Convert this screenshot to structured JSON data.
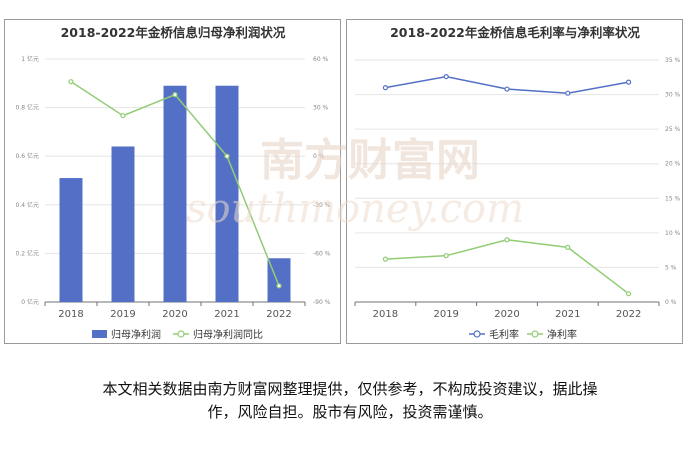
{
  "chart_data": [
    {
      "type": "bar+line",
      "title": "2018-2022年金桥信息归母净利润状况",
      "categories": [
        "2018",
        "2019",
        "2020",
        "2021",
        "2022"
      ],
      "series": [
        {
          "name": "归母净利润",
          "type": "bar",
          "axis": "left",
          "values": [
            0.51,
            0.64,
            0.89,
            0.89,
            0.18
          ]
        },
        {
          "name": "归母净利润同比",
          "type": "line",
          "axis": "right",
          "values": [
            46,
            25,
            38,
            0,
            -80
          ]
        }
      ],
      "left_axis": {
        "ticks": [
          "1 亿元",
          "0.8 亿元",
          "0.6 亿元",
          "0.4 亿元",
          "0.2 亿元",
          "0 亿元"
        ],
        "ylim": [
          0,
          1
        ]
      },
      "right_axis": {
        "ticks": [
          "60 %",
          "30 %",
          "0 %",
          "-30 %",
          "-60 %",
          "-90 %"
        ],
        "ylim": [
          -90,
          60
        ]
      },
      "legend_position": "bottom",
      "colors": {
        "bar": "#5470c6",
        "line": "#91cc75"
      }
    },
    {
      "type": "line",
      "title": "2018-2022年金桥信息毛利率与净利率状况",
      "categories": [
        "2018",
        "2019",
        "2020",
        "2021",
        "2022"
      ],
      "series": [
        {
          "name": "毛利率",
          "values": [
            31.0,
            32.6,
            30.8,
            30.2,
            31.8
          ],
          "color": "#5470c6"
        },
        {
          "name": "净利率",
          "values": [
            6.2,
            6.7,
            9.0,
            7.9,
            1.2
          ],
          "color": "#91cc75"
        }
      ],
      "right_axis": {
        "ticks": [
          "35 %",
          "30 %",
          "25 %",
          "20 %",
          "15 %",
          "10 %",
          "5 %",
          "0 %"
        ],
        "ylim": [
          0,
          35
        ]
      },
      "legend_position": "bottom"
    }
  ],
  "watermark": {
    "cn": "南方财富网",
    "en": "southmoney.com"
  },
  "footer": {
    "line1": "本文相关数据由南方财富网整理提供，仅供参考，不构成投资建议，据此操",
    "line2": "作，风险自担。股市有风险，投资需谨慎。"
  }
}
